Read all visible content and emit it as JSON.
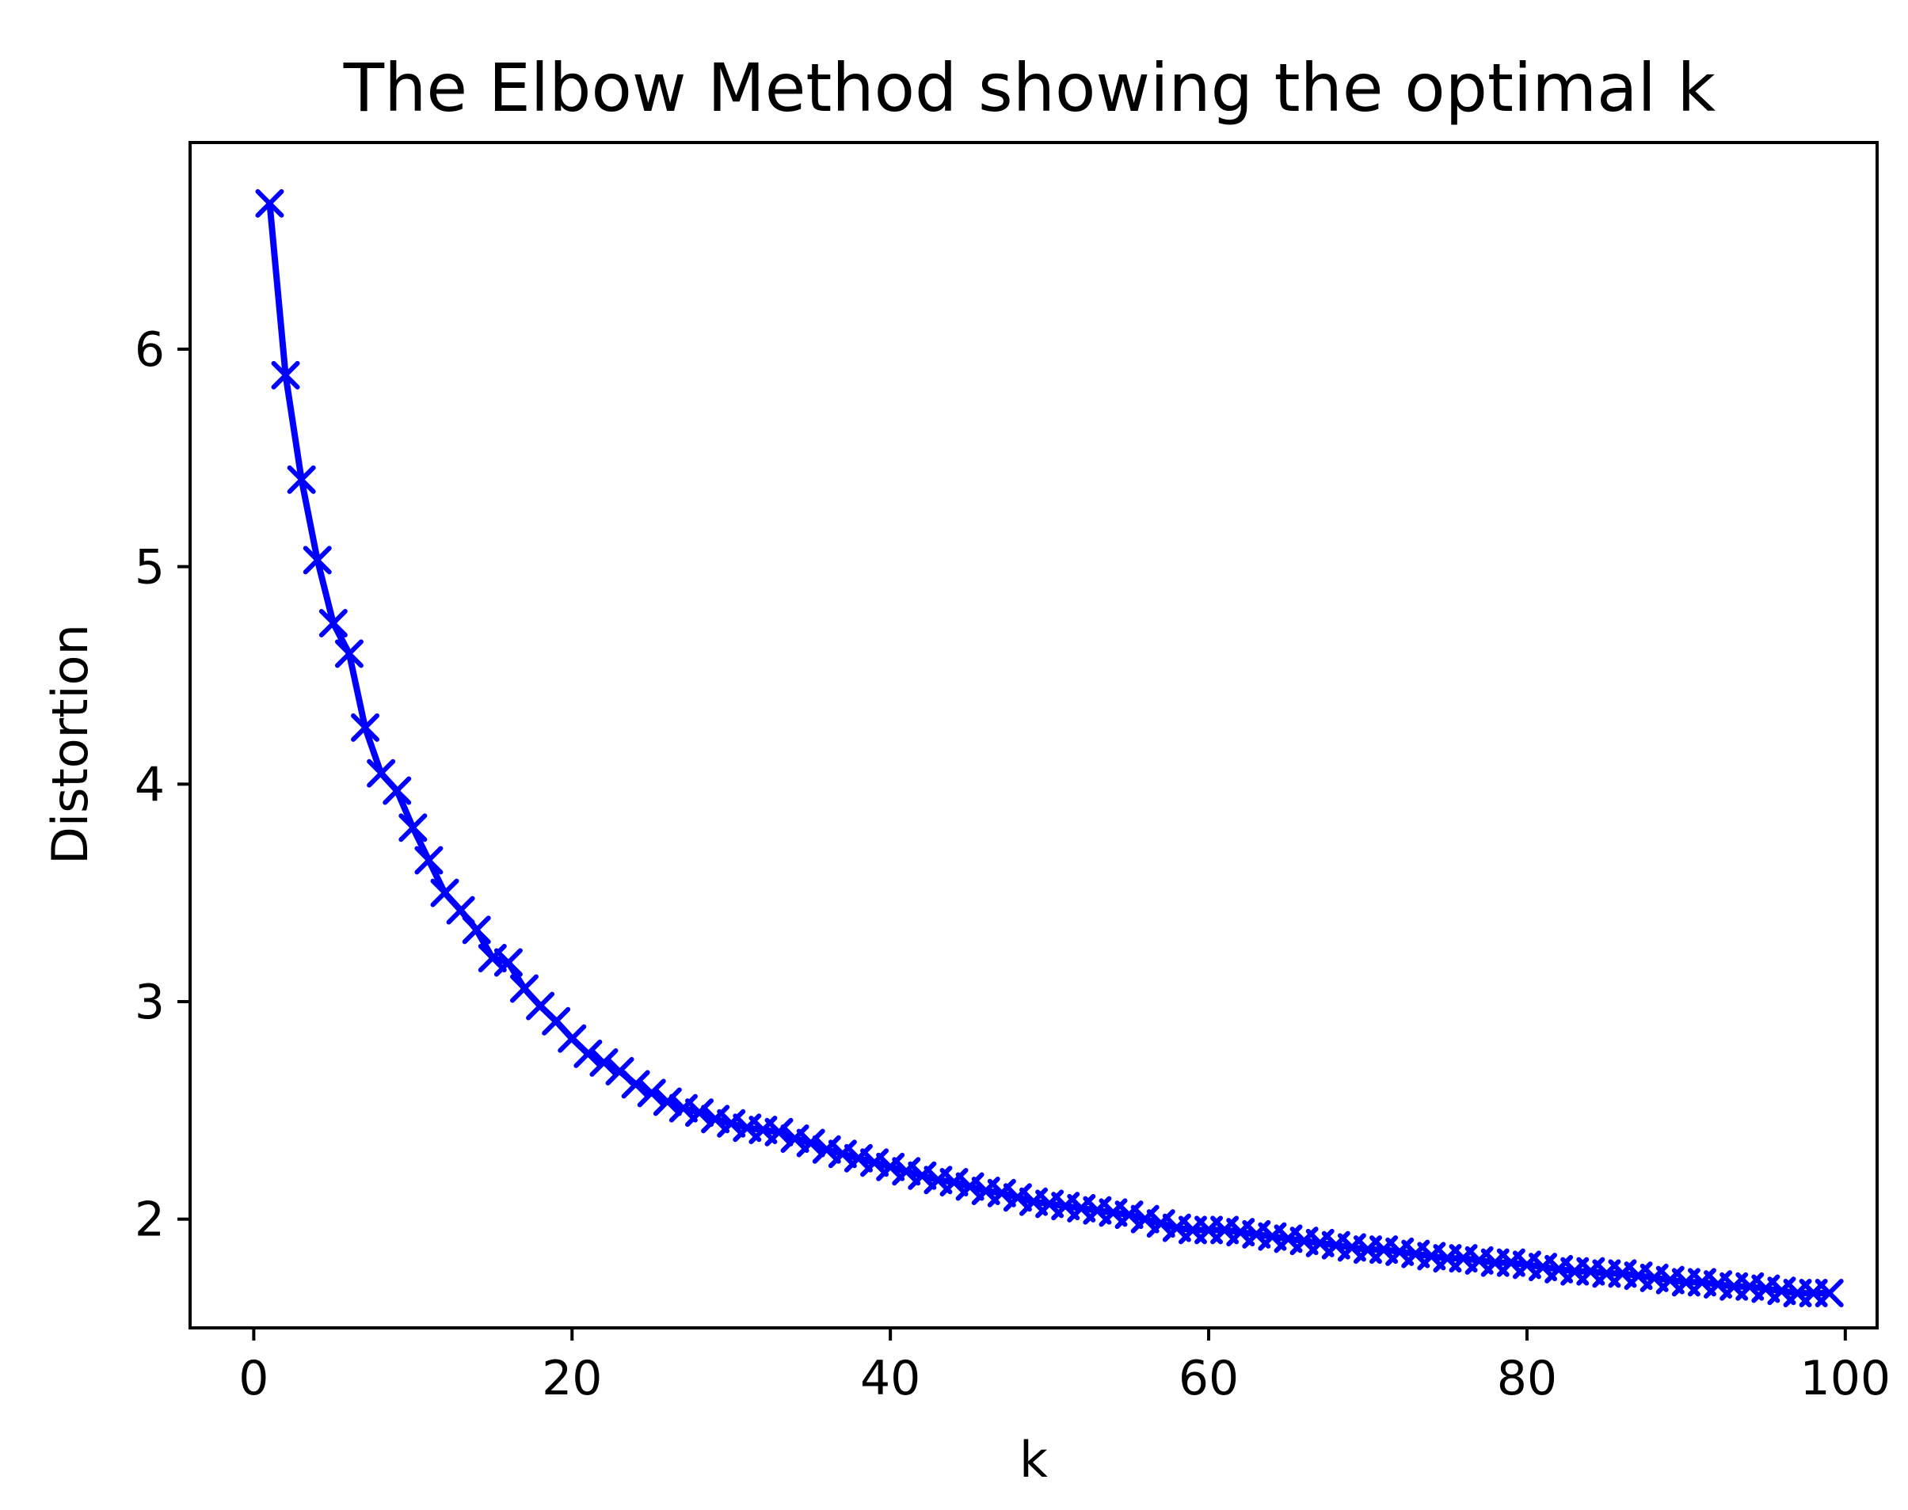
{
  "chart_data": {
    "type": "line",
    "title": "The Elbow Method showing the optimal k",
    "xlabel": "k",
    "ylabel": "Distortion",
    "xlim": [
      -4,
      102
    ],
    "ylim": [
      1.5,
      6.95
    ],
    "xticks": [
      0,
      20,
      40,
      60,
      80,
      100
    ],
    "yticks": [
      2,
      3,
      4,
      5,
      6
    ],
    "grid": false,
    "legend": "none",
    "marker": "x",
    "color": "#0000ff",
    "series": [
      {
        "x": [
          1,
          2,
          3,
          4,
          5,
          6,
          7,
          8,
          9,
          10,
          11,
          12,
          13,
          14,
          15,
          16,
          17,
          18,
          19,
          20,
          21,
          22,
          23,
          24,
          25,
          26,
          27,
          28,
          29,
          30,
          31,
          32,
          33,
          34,
          35,
          36,
          37,
          38,
          39,
          40,
          41,
          42,
          43,
          44,
          45,
          46,
          47,
          48,
          49,
          50,
          51,
          52,
          53,
          54,
          55,
          56,
          57,
          58,
          59,
          60,
          61,
          62,
          63,
          64,
          65,
          66,
          67,
          68,
          69,
          70,
          71,
          72,
          73,
          74,
          75,
          76,
          77,
          78,
          79,
          80,
          81,
          82,
          83,
          84,
          85,
          86,
          87,
          88,
          89,
          90,
          91,
          92,
          93,
          94,
          95,
          96,
          97,
          98,
          99
        ],
        "values": [
          6.67,
          5.88,
          5.4,
          5.03,
          4.74,
          4.6,
          4.26,
          4.05,
          3.97,
          3.8,
          3.65,
          3.5,
          3.42,
          3.33,
          3.2,
          3.18,
          3.06,
          2.98,
          2.91,
          2.83,
          2.76,
          2.72,
          2.68,
          2.62,
          2.58,
          2.54,
          2.51,
          2.49,
          2.46,
          2.44,
          2.42,
          2.41,
          2.4,
          2.37,
          2.35,
          2.32,
          2.3,
          2.28,
          2.26,
          2.24,
          2.22,
          2.2,
          2.18,
          2.17,
          2.15,
          2.13,
          2.12,
          2.1,
          2.08,
          2.07,
          2.06,
          2.05,
          2.04,
          2.03,
          2.02,
          2,
          1.98,
          1.96,
          1.95,
          1.95,
          1.95,
          1.94,
          1.93,
          1.92,
          1.91,
          1.9,
          1.89,
          1.88,
          1.87,
          1.86,
          1.86,
          1.85,
          1.84,
          1.83,
          1.82,
          1.82,
          1.81,
          1.8,
          1.8,
          1.79,
          1.78,
          1.77,
          1.76,
          1.76,
          1.75,
          1.75,
          1.74,
          1.73,
          1.72,
          1.71,
          1.71,
          1.7,
          1.69,
          1.69,
          1.68,
          1.67,
          1.66,
          1.66,
          1.66
        ]
      }
    ]
  }
}
